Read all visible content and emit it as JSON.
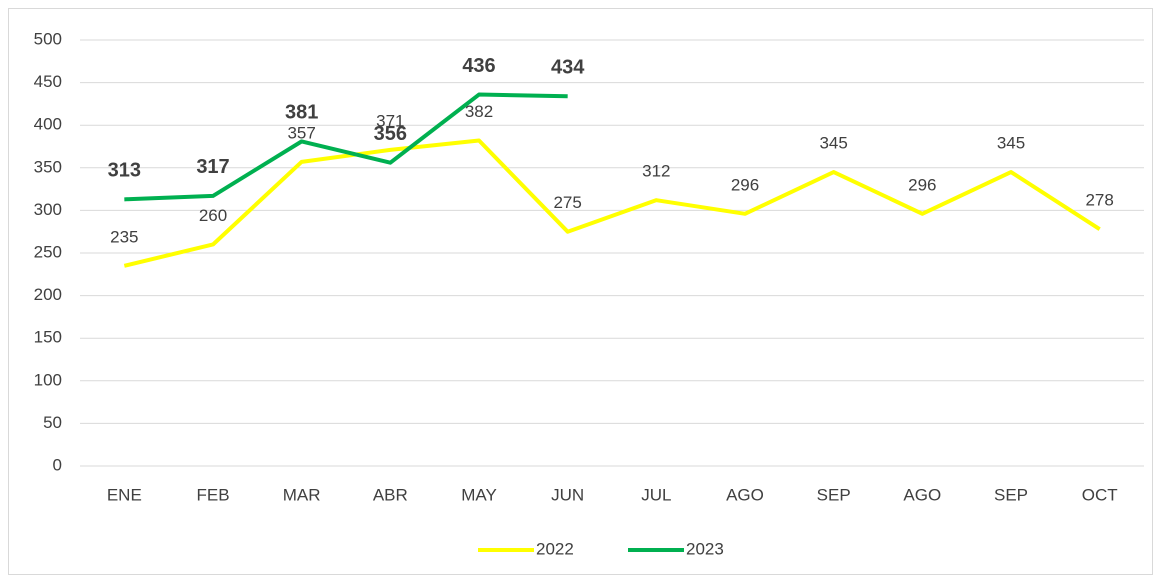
{
  "chart_data": {
    "type": "line",
    "categories": [
      "ENE",
      "FEB",
      "MAR",
      "ABR",
      "MAY",
      "JUN",
      "JUL",
      "AGO",
      "SEP",
      "AGO",
      "SEP",
      "OCT"
    ],
    "series": [
      {
        "name": "2022",
        "color": "#ffff00",
        "values": [
          235,
          260,
          357,
          371,
          382,
          275,
          312,
          296,
          345,
          296,
          345,
          278
        ]
      },
      {
        "name": "2023",
        "color": "#00b050",
        "values": [
          313,
          317,
          381,
          356,
          436,
          434,
          null,
          null,
          null,
          null,
          null,
          null
        ]
      }
    ],
    "ylim": [
      0,
      500
    ],
    "yticks": [
      0,
      50,
      100,
      150,
      200,
      250,
      300,
      350,
      400,
      450,
      500
    ],
    "grid": true,
    "legend": "bottom"
  }
}
